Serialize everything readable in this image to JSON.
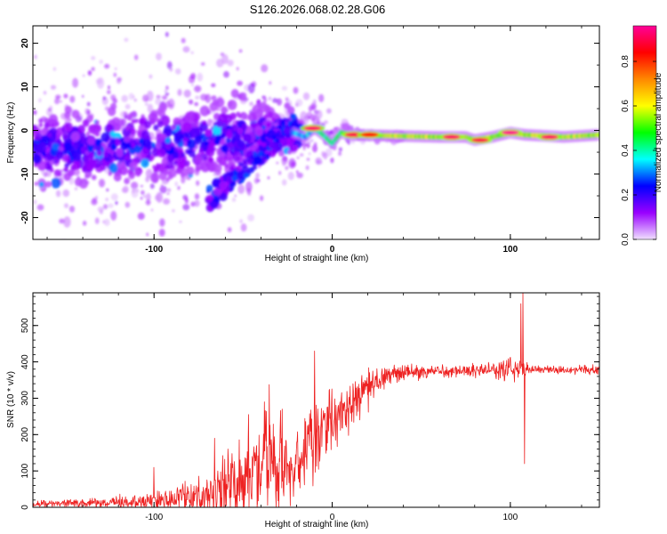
{
  "title": "S126.2026.068.02.28.G06",
  "chart_data": [
    {
      "type": "heatmap",
      "name": "spectrogram",
      "xlabel": "Height of straight line (km)",
      "ylabel": "Frequency (Hz)",
      "xlim": [
        -168,
        150
      ],
      "ylim": [
        -25,
        24
      ],
      "xticks": [
        -100,
        0,
        100
      ],
      "yticks": [
        -20,
        -10,
        0,
        10,
        20
      ],
      "colorbar": {
        "label": "Normalized spectral amplitude",
        "ticks": [
          0.0,
          0.2,
          0.4,
          0.6,
          0.8
        ],
        "range": [
          0,
          0.96
        ],
        "stops": [
          "#f0e0ff",
          "#9900ff",
          "#0000ff",
          "#00ffff",
          "#00ff00",
          "#ffff00",
          "#ff8800",
          "#ff0000",
          "#ff0099"
        ]
      },
      "ridge": [
        {
          "x": -150,
          "f": -4
        },
        {
          "x": -120,
          "f": -4
        },
        {
          "x": -90,
          "f": -3
        },
        {
          "x": -60,
          "f": -2
        },
        {
          "x": -35,
          "f": -0.5
        },
        {
          "x": -25,
          "f": 0
        },
        {
          "x": -15,
          "f": -1.5
        },
        {
          "x": -10,
          "f": 0.5
        },
        {
          "x": -5,
          "f": -1
        },
        {
          "x": 0,
          "f": -3
        },
        {
          "x": 5,
          "f": -0.5
        },
        {
          "x": 10,
          "f": -1
        },
        {
          "x": 30,
          "f": -1.2
        },
        {
          "x": 60,
          "f": -1.5
        },
        {
          "x": 75,
          "f": -1.5
        },
        {
          "x": 80,
          "f": -2.2
        },
        {
          "x": 90,
          "f": -1.5
        },
        {
          "x": 95,
          "f": -1
        },
        {
          "x": 100,
          "f": -0.5
        },
        {
          "x": 108,
          "f": -1
        },
        {
          "x": 130,
          "f": -1.5
        },
        {
          "x": 150,
          "f": -1
        }
      ],
      "hotspots": [
        {
          "x": -11,
          "f": 0.5,
          "v": 0.92
        },
        {
          "x": 12,
          "f": -1,
          "v": 0.9
        },
        {
          "x": 21,
          "f": -1,
          "v": 0.85
        },
        {
          "x": 67,
          "f": -1.5,
          "v": 0.92
        },
        {
          "x": 83,
          "f": -2.2,
          "v": 0.9
        },
        {
          "x": 100,
          "f": -0.5,
          "v": 0.95
        },
        {
          "x": 122,
          "f": -1.5,
          "v": 0.92
        }
      ]
    },
    {
      "type": "line",
      "name": "snr",
      "xlabel": "Height of straight line (km)",
      "ylabel": "SNR (10 * v/v)",
      "xlim": [
        -168,
        150
      ],
      "ylim": [
        0,
        590
      ],
      "xticks": [
        -100,
        0,
        100
      ],
      "yticks": [
        0,
        100,
        200,
        300,
        400,
        500
      ],
      "color": "#ee2222",
      "envelope": [
        {
          "x": -168,
          "base": 10,
          "amp": 12
        },
        {
          "x": -130,
          "base": 12,
          "amp": 15
        },
        {
          "x": -100,
          "base": 18,
          "amp": 30
        },
        {
          "x": -70,
          "base": 35,
          "amp": 70
        },
        {
          "x": -50,
          "base": 80,
          "amp": 160
        },
        {
          "x": -35,
          "base": 110,
          "amp": 180
        },
        {
          "x": -22,
          "base": 90,
          "amp": 120
        },
        {
          "x": -12,
          "base": 170,
          "amp": 150
        },
        {
          "x": -5,
          "base": 230,
          "amp": 110
        },
        {
          "x": 5,
          "base": 260,
          "amp": 90
        },
        {
          "x": 15,
          "base": 300,
          "amp": 80
        },
        {
          "x": 25,
          "base": 345,
          "amp": 50
        },
        {
          "x": 35,
          "base": 368,
          "amp": 30
        },
        {
          "x": 60,
          "base": 375,
          "amp": 22
        },
        {
          "x": 90,
          "base": 378,
          "amp": 25
        },
        {
          "x": 100,
          "base": 380,
          "amp": 50
        },
        {
          "x": 112,
          "base": 380,
          "amp": 15
        },
        {
          "x": 150,
          "base": 378,
          "amp": 15
        }
      ],
      "spikes": [
        {
          "x": -100,
          "y": 110
        },
        {
          "x": -66,
          "y": 190
        },
        {
          "x": -47,
          "y": 255
        },
        {
          "x": -38,
          "y": 290
        },
        {
          "x": -28,
          "y": 270
        },
        {
          "x": -10,
          "y": 430
        },
        {
          "x": 107,
          "y": 590
        },
        {
          "x": 108,
          "y": 120
        },
        {
          "x": 106,
          "y": 560
        }
      ]
    }
  ]
}
